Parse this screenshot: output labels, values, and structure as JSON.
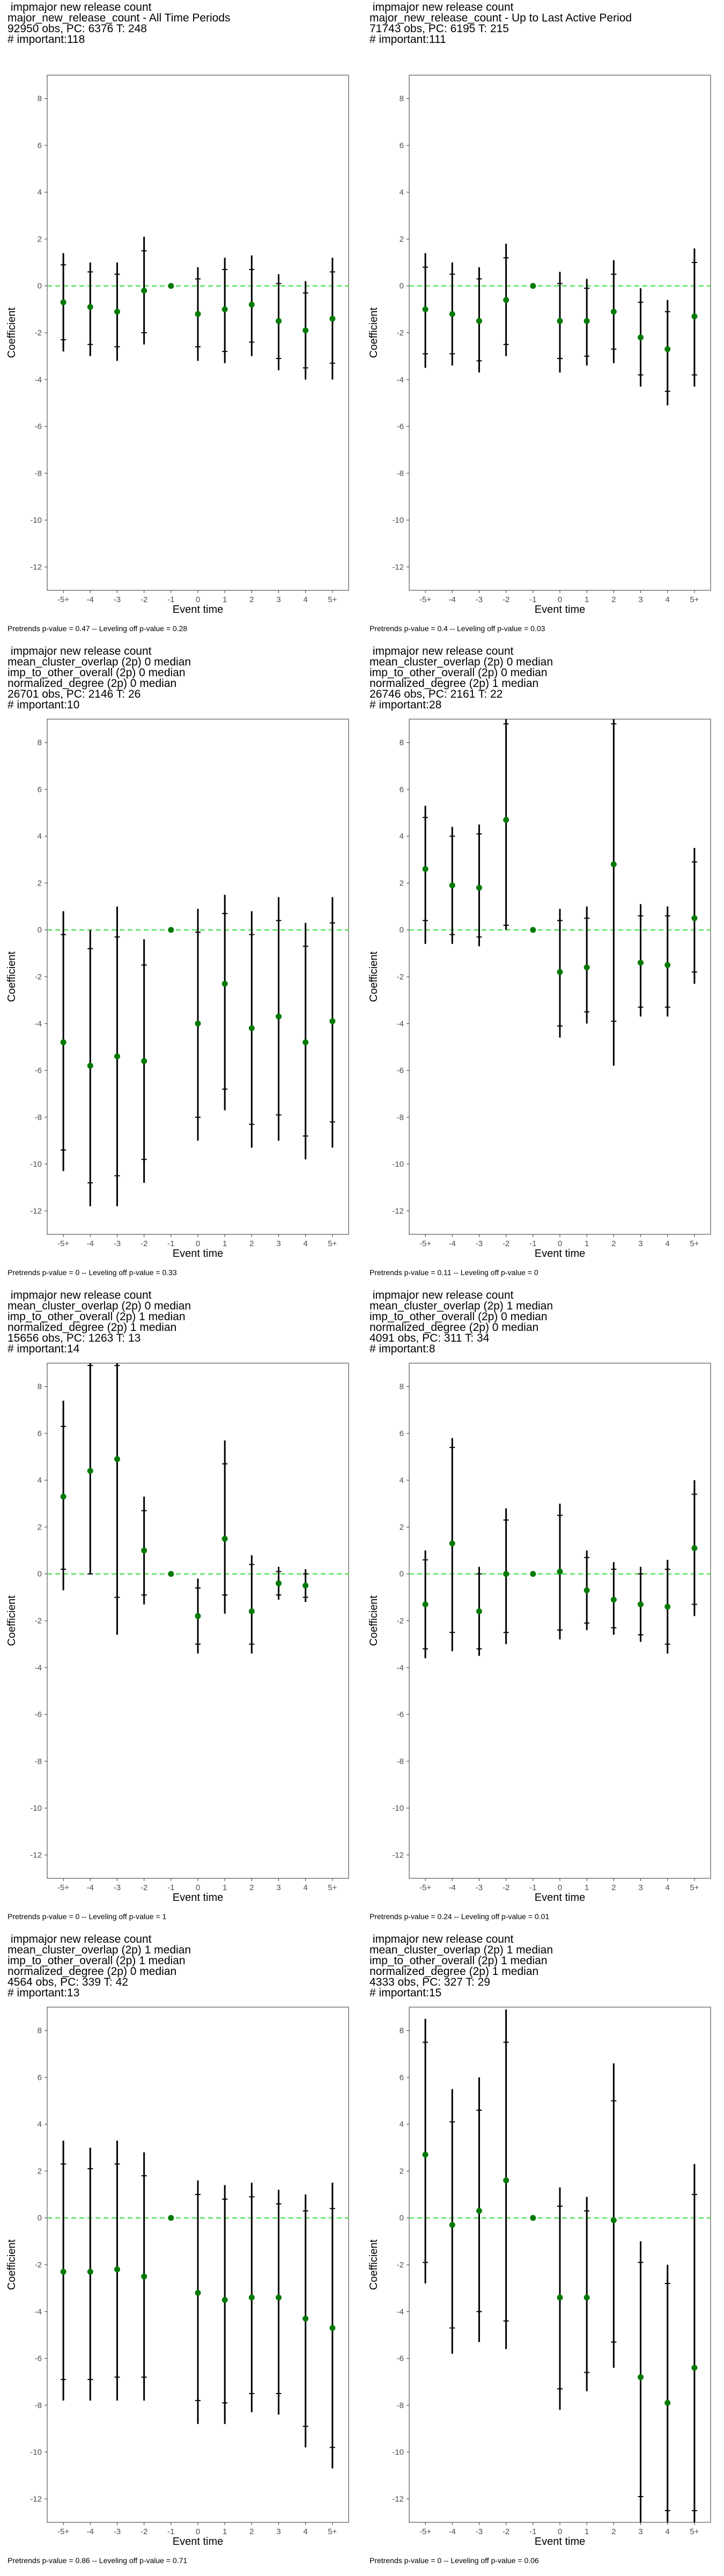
{
  "chart_data": [
    {
      "type": "scatter",
      "title_lines": [
        " impmajor new release count",
        "major_new_release_count - All Time Periods",
        "92950 obs, PC: 6376 T: 248",
        "# important:118"
      ],
      "xlabel": "Event time",
      "ylabel": "Coefficient",
      "categories": [
        "-5+",
        "-4",
        "-3",
        "-2",
        "-1",
        "0",
        "1",
        "2",
        "3",
        "4",
        "5+"
      ],
      "ylim": [
        -13,
        9
      ],
      "yticks": [
        -12,
        -10,
        -8,
        -6,
        -4,
        -2,
        0,
        2,
        4,
        6,
        8
      ],
      "coef": [
        -0.7,
        -0.9,
        -1.1,
        -0.2,
        0,
        -1.2,
        -1.0,
        -0.8,
        -1.5,
        -1.9,
        -1.4
      ],
      "ci95": [
        [
          -2.8,
          1.4
        ],
        [
          -3.0,
          1.0
        ],
        [
          -3.2,
          1.0
        ],
        [
          -2.5,
          2.1
        ],
        null,
        [
          -3.2,
          0.8
        ],
        [
          -3.3,
          1.2
        ],
        [
          -3.0,
          1.3
        ],
        [
          -3.6,
          0.5
        ],
        [
          -4.0,
          0.2
        ],
        [
          -4.0,
          1.2
        ]
      ],
      "ci90": [
        [
          -2.3,
          0.9
        ],
        [
          -2.5,
          0.6
        ],
        [
          -2.6,
          0.5
        ],
        [
          -2.0,
          1.5
        ],
        null,
        [
          -2.6,
          0.3
        ],
        [
          -2.8,
          0.7
        ],
        [
          -2.4,
          0.7
        ],
        [
          -3.1,
          0.1
        ],
        [
          -3.5,
          -0.3
        ],
        [
          -3.3,
          0.6
        ]
      ],
      "footer": "Pretrends p-value = 0.47 -- Leveling off p-value = 0.28"
    },
    {
      "type": "scatter",
      "title_lines": [
        " impmajor new release count",
        "major_new_release_count - Up to Last Active Period",
        "71743 obs, PC: 6195 T: 215",
        "# important:111"
      ],
      "xlabel": "Event time",
      "ylabel": "Coefficient",
      "categories": [
        "-5+",
        "-4",
        "-3",
        "-2",
        "-1",
        "0",
        "1",
        "2",
        "3",
        "4",
        "5+"
      ],
      "ylim": [
        -13,
        9
      ],
      "yticks": [
        -12,
        -10,
        -8,
        -6,
        -4,
        -2,
        0,
        2,
        4,
        6,
        8
      ],
      "coef": [
        -1.0,
        -1.2,
        -1.5,
        -0.6,
        0,
        -1.5,
        -1.5,
        -1.1,
        -2.2,
        -2.7,
        -1.3
      ],
      "ci95": [
        [
          -3.5,
          1.4
        ],
        [
          -3.4,
          1.0
        ],
        [
          -3.7,
          0.8
        ],
        [
          -3.0,
          1.8
        ],
        null,
        [
          -3.7,
          0.6
        ],
        [
          -3.4,
          0.3
        ],
        [
          -3.3,
          1.1
        ],
        [
          -4.3,
          -0.1
        ],
        [
          -5.1,
          -0.6
        ],
        [
          -4.3,
          1.6
        ]
      ],
      "ci90": [
        [
          -2.9,
          0.8
        ],
        [
          -2.9,
          0.5
        ],
        [
          -3.2,
          0.3
        ],
        [
          -2.5,
          1.2
        ],
        null,
        [
          -3.1,
          0.1
        ],
        [
          -3.0,
          -0.1
        ],
        [
          -2.7,
          0.5
        ],
        [
          -3.8,
          -0.7
        ],
        [
          -4.5,
          -1.1
        ],
        [
          -3.8,
          1.0
        ]
      ],
      "footer": "Pretrends p-value = 0.4 -- Leveling off p-value = 0.03"
    },
    {
      "type": "scatter",
      "title_lines": [
        " impmajor new release count",
        "mean_cluster_overlap (2p) 0 median",
        "imp_to_other_overall (2p) 0 median",
        "normalized_degree (2p) 0 median",
        "26701 obs, PC: 2146 T: 26",
        "# important:10"
      ],
      "xlabel": "Event time",
      "ylabel": "Coefficient",
      "categories": [
        "-5+",
        "-4",
        "-3",
        "-2",
        "-1",
        "0",
        "1",
        "2",
        "3",
        "4",
        "5+"
      ],
      "ylim": [
        -13,
        9
      ],
      "yticks": [
        -12,
        -10,
        -8,
        -6,
        -4,
        -2,
        0,
        2,
        4,
        6,
        8
      ],
      "coef": [
        -4.8,
        -5.8,
        -5.4,
        -5.6,
        0,
        -4.0,
        -2.3,
        -4.2,
        -3.7,
        -4.8,
        -3.9
      ],
      "ci95": [
        [
          -10.3,
          0.8
        ],
        [
          -11.8,
          0.0
        ],
        [
          -11.8,
          1.0
        ],
        [
          -10.8,
          -0.4
        ],
        null,
        [
          -9.0,
          0.9
        ],
        [
          -7.7,
          1.5
        ],
        [
          -9.3,
          0.8
        ],
        [
          -9.0,
          1.4
        ],
        [
          -9.8,
          0.3
        ],
        [
          -9.3,
          1.4
        ]
      ],
      "ci90": [
        [
          -9.4,
          -0.2
        ],
        [
          -10.8,
          -0.8
        ],
        [
          -10.5,
          -0.3
        ],
        [
          -9.8,
          -1.5
        ],
        null,
        [
          -8.0,
          -0.1
        ],
        [
          -6.8,
          0.7
        ],
        [
          -8.3,
          -0.2
        ],
        [
          -7.9,
          0.4
        ],
        [
          -8.8,
          -0.7
        ],
        [
          -8.2,
          0.3
        ]
      ],
      "footer": "Pretrends p-value = 0 -- Leveling off p-value = 0.33"
    },
    {
      "type": "scatter",
      "title_lines": [
        " impmajor new release count",
        "mean_cluster_overlap (2p) 0 median",
        "imp_to_other_overall (2p) 0 median",
        "normalized_degree (2p) 1 median",
        "26746 obs, PC: 2161 T: 22",
        "# important:28"
      ],
      "xlabel": "Event time",
      "ylabel": "Coefficient",
      "categories": [
        "-5+",
        "-4",
        "-3",
        "-2",
        "-1",
        "0",
        "1",
        "2",
        "3",
        "4",
        "5+"
      ],
      "ylim": [
        -13,
        9
      ],
      "yticks": [
        -12,
        -10,
        -8,
        -6,
        -4,
        -2,
        0,
        2,
        4,
        6,
        8
      ],
      "coef": [
        2.6,
        1.9,
        1.8,
        4.7,
        0,
        -1.8,
        -1.6,
        2.8,
        -1.4,
        -1.5,
        0.5
      ],
      "ci95": [
        [
          -0.6,
          5.3
        ],
        [
          -0.6,
          4.4
        ],
        [
          -0.7,
          4.5
        ],
        [
          0.0,
          9.0
        ],
        null,
        [
          -4.6,
          0.9
        ],
        [
          -4.0,
          1.0
        ],
        [
          -5.8,
          9.0
        ],
        [
          -3.7,
          1.1
        ],
        [
          -3.7,
          1.0
        ],
        [
          -2.3,
          3.5
        ]
      ],
      "ci90": [
        [
          0.4,
          4.8
        ],
        [
          -0.2,
          4.0
        ],
        [
          -0.3,
          4.1
        ],
        [
          0.2,
          8.8
        ],
        null,
        [
          -4.1,
          0.4
        ],
        [
          -3.5,
          0.5
        ],
        [
          -3.9,
          8.8
        ],
        [
          -3.3,
          0.6
        ],
        [
          -3.3,
          0.6
        ],
        [
          -1.8,
          2.9
        ]
      ],
      "footer": "Pretrends p-value = 0.11 -- Leveling off p-value = 0"
    },
    {
      "type": "scatter",
      "title_lines": [
        " impmajor new release count",
        "mean_cluster_overlap (2p) 0 median",
        "imp_to_other_overall (2p) 1 median",
        "normalized_degree (2p) 1 median",
        "15656 obs, PC: 1263 T: 13",
        "# important:14"
      ],
      "xlabel": "Event time",
      "ylabel": "Coefficient",
      "categories": [
        "-5+",
        "-4",
        "-3",
        "-2",
        "-1",
        "0",
        "1",
        "2",
        "3",
        "4",
        "5+"
      ],
      "ylim": [
        -13,
        9
      ],
      "yticks": [
        -12,
        -10,
        -8,
        -6,
        -4,
        -2,
        0,
        2,
        4,
        6,
        8
      ],
      "coef": [
        3.3,
        4.4,
        4.9,
        1.0,
        0,
        -1.8,
        1.5,
        -1.6,
        -0.4,
        -0.5,
        null
      ],
      "ci95": [
        [
          -0.7,
          7.4
        ],
        [
          0.0,
          9.0
        ],
        [
          -2.6,
          9.0
        ],
        [
          -1.3,
          3.3
        ],
        null,
        [
          -3.4,
          -0.2
        ],
        [
          -1.7,
          5.7
        ],
        [
          -3.4,
          0.8
        ],
        [
          -1.1,
          0.3
        ],
        [
          -1.2,
          0.2
        ],
        null
      ],
      "ci90": [
        [
          0.2,
          6.3
        ],
        [
          0.0,
          8.9
        ],
        [
          -1.0,
          8.9
        ],
        [
          -0.9,
          2.7
        ],
        null,
        [
          -3.0,
          -0.6
        ],
        [
          -0.9,
          4.7
        ],
        [
          -3.0,
          0.4
        ],
        [
          -0.9,
          0.1
        ],
        [
          -1.0,
          0.0
        ],
        null
      ],
      "footer": "Pretrends p-value = 0 -- Leveling off p-value = 1"
    },
    {
      "type": "scatter",
      "title_lines": [
        " impmajor new release count",
        "mean_cluster_overlap (2p) 1 median",
        "imp_to_other_overall (2p) 0 median",
        "normalized_degree (2p) 0 median",
        "4091 obs, PC: 311 T: 34",
        "# important:8"
      ],
      "xlabel": "Event time",
      "ylabel": "Coefficient",
      "categories": [
        "-5+",
        "-4",
        "-3",
        "-2",
        "-1",
        "0",
        "1",
        "2",
        "3",
        "4",
        "5+"
      ],
      "ylim": [
        -13,
        9
      ],
      "yticks": [
        -12,
        -10,
        -8,
        -6,
        -4,
        -2,
        0,
        2,
        4,
        6,
        8
      ],
      "coef": [
        -1.3,
        1.3,
        -1.6,
        0.0,
        0,
        0.1,
        -0.7,
        -1.1,
        -1.3,
        -1.4,
        1.1
      ],
      "ci95": [
        [
          -3.6,
          1.0
        ],
        [
          -3.3,
          5.8
        ],
        [
          -3.5,
          0.3
        ],
        [
          -3.0,
          2.8
        ],
        null,
        [
          -2.8,
          3.0
        ],
        [
          -2.4,
          1.0
        ],
        [
          -2.6,
          0.5
        ],
        [
          -2.9,
          0.3
        ],
        [
          -3.4,
          0.6
        ],
        [
          -1.8,
          4.0
        ]
      ],
      "ci90": [
        [
          -3.2,
          0.6
        ],
        [
          -2.5,
          5.4
        ],
        [
          -3.2,
          0.0
        ],
        [
          -2.5,
          2.3
        ],
        null,
        [
          -2.4,
          2.5
        ],
        [
          -2.1,
          0.7
        ],
        [
          -2.3,
          0.2
        ],
        [
          -2.6,
          0.0
        ],
        [
          -3.0,
          0.2
        ],
        [
          -1.3,
          3.4
        ]
      ],
      "footer": "Pretrends p-value = 0.24 -- Leveling off p-value = 0.01"
    },
    {
      "type": "scatter",
      "title_lines": [
        " impmajor new release count",
        "mean_cluster_overlap (2p) 1 median",
        "imp_to_other_overall (2p) 1 median",
        "normalized_degree (2p) 0 median",
        "4564 obs, PC: 339 T: 42",
        "# important:13"
      ],
      "xlabel": "Event time",
      "ylabel": "Coefficient",
      "categories": [
        "-5+",
        "-4",
        "-3",
        "-2",
        "-1",
        "0",
        "1",
        "2",
        "3",
        "4",
        "5+"
      ],
      "ylim": [
        -13,
        9
      ],
      "yticks": [
        -12,
        -10,
        -8,
        -6,
        -4,
        -2,
        0,
        2,
        4,
        6,
        8
      ],
      "coef": [
        -2.3,
        -2.3,
        -2.2,
        -2.5,
        0,
        -3.2,
        -3.5,
        -3.4,
        -3.4,
        -4.3,
        -4.7
      ],
      "ci95": [
        [
          -7.8,
          3.3
        ],
        [
          -7.8,
          3.0
        ],
        [
          -7.8,
          3.3
        ],
        [
          -7.8,
          2.8
        ],
        null,
        [
          -8.8,
          1.6
        ],
        [
          -8.8,
          1.4
        ],
        [
          -8.3,
          1.5
        ],
        [
          -8.4,
          1.2
        ],
        [
          -9.8,
          1.0
        ],
        [
          -10.7,
          1.5
        ]
      ],
      "ci90": [
        [
          -6.9,
          2.3
        ],
        [
          -6.9,
          2.1
        ],
        [
          -6.8,
          2.3
        ],
        [
          -6.8,
          1.8
        ],
        null,
        [
          -7.8,
          1.0
        ],
        [
          -7.9,
          0.8
        ],
        [
          -7.5,
          0.9
        ],
        [
          -7.5,
          0.6
        ],
        [
          -8.9,
          0.3
        ],
        [
          -9.8,
          0.4
        ]
      ],
      "footer": "Pretrends p-value = 0.86 -- Leveling off p-value = 0.71"
    },
    {
      "type": "scatter",
      "title_lines": [
        " impmajor new release count",
        "mean_cluster_overlap (2p) 1 median",
        "imp_to_other_overall (2p) 1 median",
        "normalized_degree (2p) 1 median",
        "4333 obs, PC: 327 T: 29",
        "# important:15"
      ],
      "xlabel": "Event time",
      "ylabel": "Coefficient",
      "categories": [
        "-5+",
        "-4",
        "-3",
        "-2",
        "-1",
        "0",
        "1",
        "2",
        "3",
        "4",
        "5+"
      ],
      "ylim": [
        -13,
        9
      ],
      "yticks": [
        -12,
        -10,
        -8,
        -6,
        -4,
        -2,
        0,
        2,
        4,
        6,
        8
      ],
      "coef": [
        2.7,
        -0.3,
        0.3,
        1.6,
        0,
        -3.4,
        -3.4,
        -0.1,
        -6.8,
        -7.9,
        -6.4
      ],
      "ci95": [
        [
          -2.8,
          8.5
        ],
        [
          -5.8,
          5.5
        ],
        [
          -5.3,
          6.0
        ],
        [
          -5.6,
          8.9
        ],
        null,
        [
          -8.2,
          1.3
        ],
        [
          -7.4,
          0.9
        ],
        [
          -6.4,
          6.6
        ],
        [
          -13.0,
          -1.0
        ],
        [
          -13.0,
          -2.0
        ],
        [
          -13.0,
          2.3
        ]
      ],
      "ci90": [
        [
          -1.9,
          7.5
        ],
        [
          -4.7,
          4.1
        ],
        [
          -4.0,
          4.6
        ],
        [
          -4.4,
          7.5
        ],
        null,
        [
          -7.3,
          0.5
        ],
        [
          -6.6,
          0.3
        ],
        [
          -5.3,
          5.0
        ],
        [
          -11.9,
          -1.9
        ],
        [
          -12.5,
          -2.8
        ],
        [
          -12.5,
          1.0
        ]
      ],
      "footer": "Pretrends p-value = 0 -- Leveling off p-value = 0.06"
    }
  ]
}
